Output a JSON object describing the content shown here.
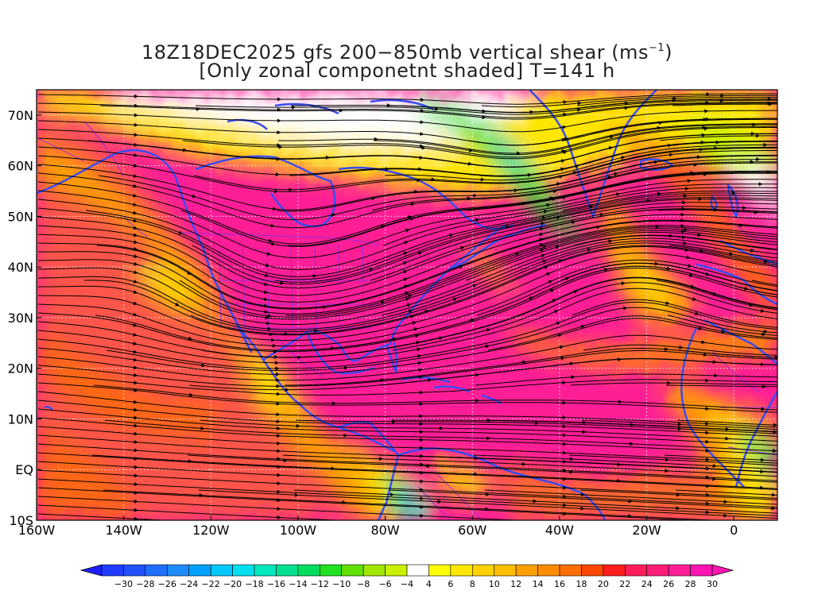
{
  "title": {
    "line1_main": "18Z18DEC2025 gfs 200−850mb vertical shear (ms",
    "line1_sup": "−1",
    "line1_end": ")",
    "line2": "[Only zonal componetnt shaded] T=141 h"
  },
  "map": {
    "lon_range": [
      -160,
      10
    ],
    "lat_range": [
      -10,
      75
    ],
    "longitude_labels": [
      {
        "lon": -160,
        "label": "160W"
      },
      {
        "lon": -140,
        "label": "140W"
      },
      {
        "lon": -120,
        "label": "120W"
      },
      {
        "lon": -100,
        "label": "100W"
      },
      {
        "lon": -80,
        "label": "80W"
      },
      {
        "lon": -60,
        "label": "60W"
      },
      {
        "lon": -40,
        "label": "40W"
      },
      {
        "lon": -20,
        "label": "20W"
      },
      {
        "lon": 0,
        "label": "0"
      }
    ],
    "latitude_labels": [
      {
        "lat": 70,
        "label": "70N"
      },
      {
        "lat": 60,
        "label": "60N"
      },
      {
        "lat": 50,
        "label": "50N"
      },
      {
        "lat": 40,
        "label": "40N"
      },
      {
        "lat": 30,
        "label": "30N"
      },
      {
        "lat": 20,
        "label": "20N"
      },
      {
        "lat": 10,
        "label": "10N"
      },
      {
        "lat": 0,
        "label": "EQ"
      },
      {
        "lat": -10,
        "label": "10S"
      }
    ],
    "colors": {
      "coastline": "#3a4cf0",
      "border": "#8a2be2",
      "streamline": "#000000",
      "grid": "#ffffff"
    }
  },
  "colorbar": {
    "labels": [
      "−30",
      "−28",
      "−26",
      "−24",
      "−22",
      "−20",
      "−18",
      "−16",
      "−14",
      "−12",
      "−10",
      "−8",
      "−6",
      "−4",
      "4",
      "6",
      "8",
      "10",
      "12",
      "14",
      "16",
      "18",
      "20",
      "22",
      "24",
      "26",
      "28",
      "30"
    ],
    "colors": [
      "#1e3cff",
      "#2050ff",
      "#1e6eff",
      "#1e8cff",
      "#00a0ff",
      "#00c8ff",
      "#00e0f0",
      "#00e8c0",
      "#00e090",
      "#00dc60",
      "#20e020",
      "#60e000",
      "#a0e600",
      "#c8f000",
      "#ffffff",
      "#ffff00",
      "#ffe600",
      "#ffd200",
      "#ffbe00",
      "#ffa000",
      "#ff8c00",
      "#ff6e00",
      "#ff4600",
      "#ff1e1e",
      "#ff1e5a",
      "#ff1e78",
      "#ff1e96",
      "#ff14b4"
    ]
  }
}
